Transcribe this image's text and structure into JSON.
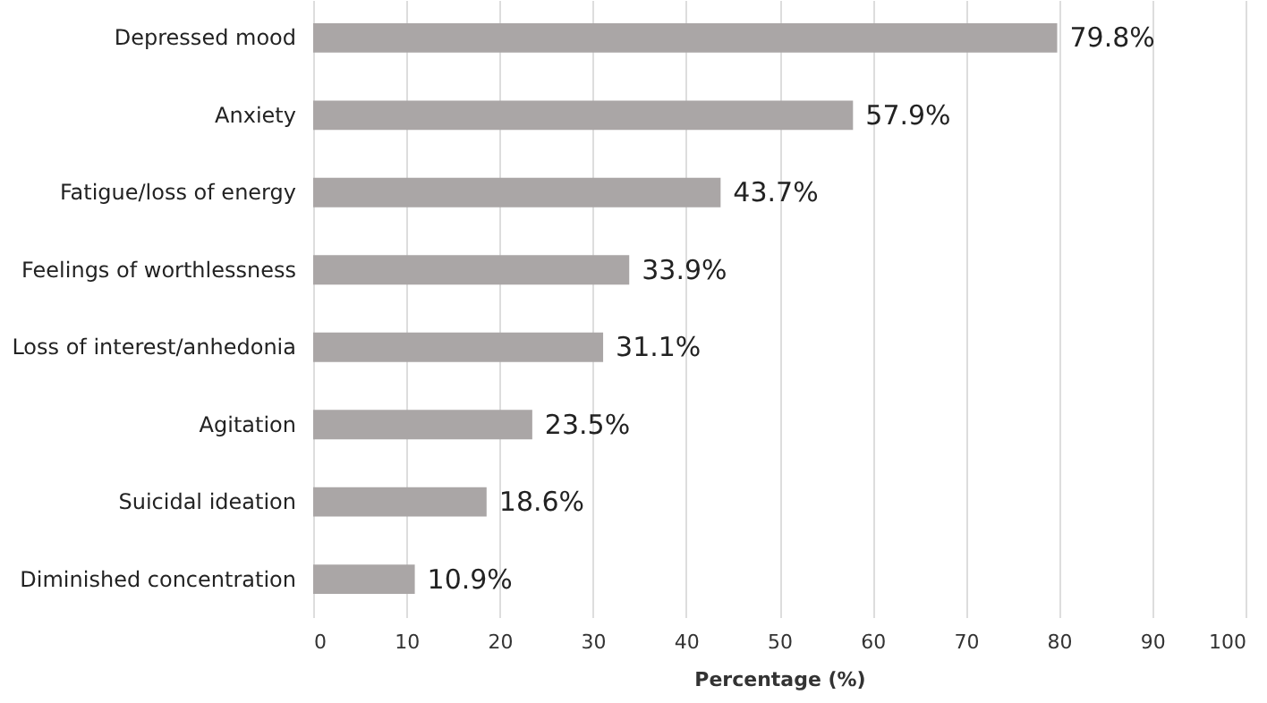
{
  "chart_data": {
    "type": "bar",
    "orientation": "horizontal",
    "xlabel": "Percentage (%)",
    "categories": [
      "Depressed mood",
      "Anxiety",
      "Fatigue/loss of energy",
      "Feelings of worthlessness",
      "Loss of interest/anhedonia",
      "Agitation",
      "Suicidal ideation",
      "Diminished concentration"
    ],
    "values": [
      79.8,
      57.9,
      43.7,
      33.9,
      31.1,
      23.5,
      18.6,
      10.9
    ],
    "value_labels": [
      "79.8%",
      "57.9%",
      "43.7%",
      "33.9%",
      "31.1%",
      "23.5%",
      "18.6%",
      "10.9%"
    ],
    "color": "#aaa6a6",
    "xlim": [
      0,
      100
    ],
    "xticks": [
      0,
      10,
      20,
      30,
      40,
      50,
      60,
      70,
      80,
      90,
      100
    ],
    "grid": "x"
  }
}
